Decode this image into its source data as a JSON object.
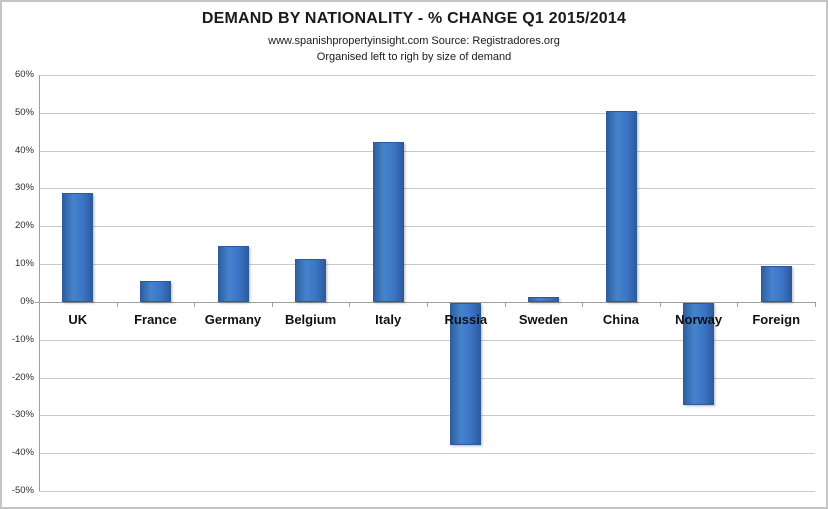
{
  "chart": {
    "title": "DEMAND BY NATIONALITY - % CHANGE Q1 2015/2014",
    "subtitle1": "www.spanishpropertyinsight.com Source: Registradores.org",
    "subtitle2": "Organised left to righ by size of demand"
  },
  "chart_data": {
    "type": "bar",
    "title": "DEMAND BY NATIONALITY - % CHANGE Q1 2015/2014",
    "subtitle": "www.spanishpropertyinsight.com Source: Registradores.org",
    "annotation": "Organised left to righ by size of demand",
    "categories": [
      "UK",
      "France",
      "Germany",
      "Belgium",
      "Italy",
      "Russia",
      "Sweden",
      "China",
      "Norway",
      "Foreign"
    ],
    "values": [
      28.8,
      5.4,
      14.9,
      11.3,
      42.4,
      -37.5,
      1.3,
      50.6,
      -27.0,
      9.5
    ],
    "xlabel": "",
    "ylabel": "",
    "ylim": [
      -50,
      60
    ],
    "y_tick_step": 10,
    "y_tick_suffix": "%",
    "grid": true,
    "legend": false,
    "colors": {
      "bar": "#3b74c4",
      "bar_edge": "#2a5a9b",
      "gridline": "#c9c9c9",
      "axis": "#9f9f9f",
      "text": "#1a1a1a"
    }
  }
}
